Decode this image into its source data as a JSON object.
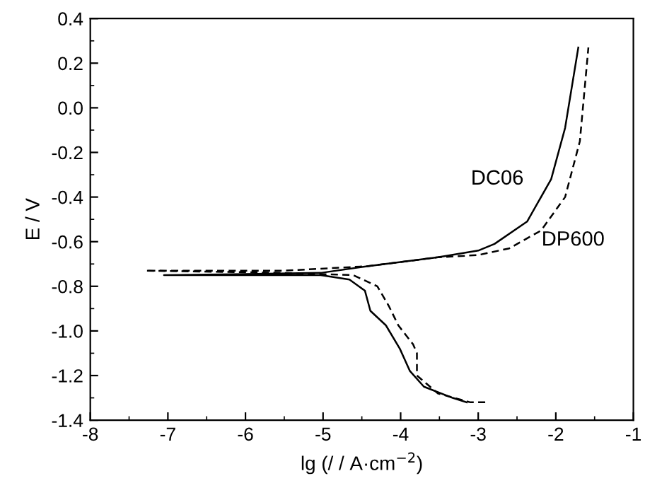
{
  "chart_data": {
    "type": "line",
    "xlabel": "lg (/ / A·cm$^{−2}$)",
    "ylabel": "E / V",
    "xlim": [
      -8,
      -1
    ],
    "ylim": [
      -1.4,
      0.4
    ],
    "xticks": [
      -8,
      -7,
      -6,
      -5,
      -4,
      -3,
      -2,
      -1
    ],
    "yticks": [
      -1.4,
      -1.2,
      {
        "value": -1.0,
        "label": "-1.0"
      },
      -0.8,
      -0.6,
      -0.4,
      -0.2,
      {
        "value": 0.0,
        "label": "0.0"
      },
      0.2,
      0.4
    ],
    "grid": false,
    "marker": "none",
    "series": [
      {
        "name": "DC06",
        "color": "#000000",
        "line_style": "solid",
        "x": [
          -3.15,
          -3.33,
          -3.7,
          -3.88,
          -4.01,
          -4.19,
          -4.39,
          -4.46,
          -4.66,
          -5.03,
          -6.0,
          -7.05,
          -6.0,
          -5.03,
          -4.43,
          -3.52,
          -3.0,
          -2.79,
          -2.37,
          -2.06,
          -1.88,
          -1.71
        ],
        "values": [
          -1.32,
          -1.3,
          -1.25,
          -1.18,
          -1.08,
          -0.975,
          -0.91,
          -0.82,
          -0.77,
          -0.75,
          -0.75,
          -0.75,
          -0.745,
          -0.74,
          -0.71,
          -0.67,
          -0.64,
          -0.61,
          -0.51,
          -0.32,
          -0.09,
          0.27
        ]
      },
      {
        "name": "DP600",
        "color": "#000000",
        "line_style": "dashed",
        "x": [
          -2.91,
          -3.1,
          -3.52,
          -3.79,
          -3.79,
          -3.84,
          -4.03,
          -4.15,
          -4.3,
          -4.61,
          -5.5,
          -7.29,
          -5.5,
          -4.43,
          -3.52,
          -3.0,
          -2.6,
          -2.19,
          -1.88,
          -1.69,
          -1.58
        ],
        "values": [
          -1.32,
          -1.32,
          -1.28,
          -1.2,
          -1.1,
          -1.06,
          -0.975,
          -0.89,
          -0.8,
          -0.75,
          -0.74,
          -0.73,
          -0.73,
          -0.71,
          -0.67,
          -0.66,
          -0.63,
          -0.55,
          -0.4,
          -0.15,
          0.27
        ]
      }
    ]
  }
}
